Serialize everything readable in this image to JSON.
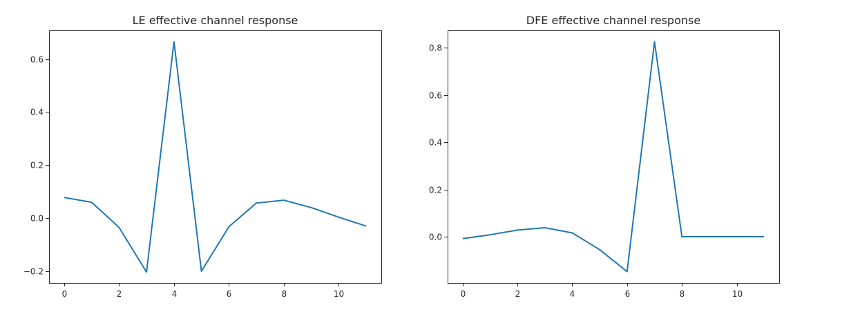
{
  "chart_data": [
    {
      "type": "line",
      "title": "LE effective channel response",
      "xlabel": "",
      "ylabel": "",
      "x": [
        0,
        1,
        2,
        3,
        4,
        5,
        6,
        7,
        8,
        9,
        10,
        11
      ],
      "series": [
        {
          "values": [
            0.078,
            0.06,
            -0.035,
            -0.203,
            0.665,
            -0.2,
            -0.032,
            0.057,
            0.068,
            0.04,
            0.004,
            -0.03
          ]
        }
      ],
      "xlim": [
        -0.55,
        11.55
      ],
      "ylim": [
        -0.244,
        0.708
      ],
      "xticks": [
        0,
        2,
        4,
        6,
        8,
        10
      ],
      "xtick_labels": [
        "0",
        "2",
        "4",
        "6",
        "8",
        "10"
      ],
      "yticks": [
        -0.2,
        0.0,
        0.2,
        0.4,
        0.6
      ],
      "ytick_labels": [
        "−0.2",
        "0.0",
        "0.2",
        "0.4",
        "0.6"
      ],
      "grid": false,
      "color": "#1f77b4"
    },
    {
      "type": "line",
      "title": "DFE effective channel response",
      "xlabel": "",
      "ylabel": "",
      "x": [
        0,
        1,
        2,
        3,
        4,
        5,
        6,
        7,
        8,
        9,
        10,
        11
      ],
      "series": [
        {
          "values": [
            -0.008,
            0.008,
            0.028,
            0.038,
            0.016,
            -0.055,
            -0.148,
            0.826,
            0.0,
            0.0,
            0.0,
            0.0
          ]
        }
      ],
      "xlim": [
        -0.55,
        11.55
      ],
      "ylim": [
        -0.196,
        0.874
      ],
      "xticks": [
        0,
        2,
        4,
        6,
        8,
        10
      ],
      "xtick_labels": [
        "0",
        "2",
        "4",
        "6",
        "8",
        "10"
      ],
      "yticks": [
        0.0,
        0.2,
        0.4,
        0.6,
        0.8
      ],
      "ytick_labels": [
        "0.0",
        "0.2",
        "0.4",
        "0.6",
        "0.8"
      ],
      "grid": false,
      "color": "#1f77b4"
    }
  ]
}
